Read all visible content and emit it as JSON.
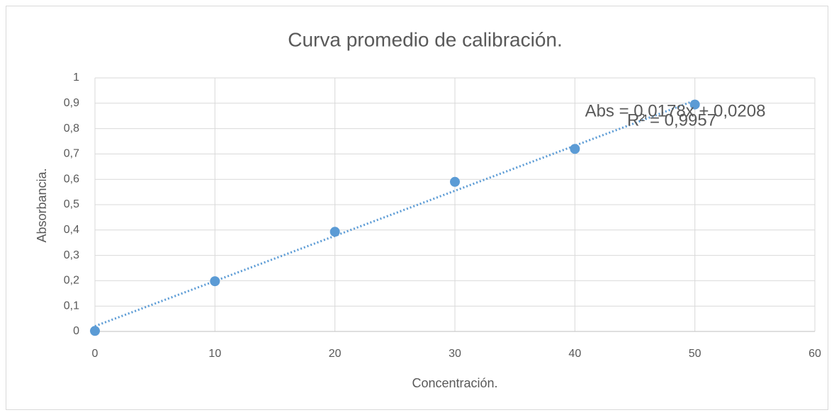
{
  "chart_data": {
    "type": "scatter",
    "title": "Curva promedio de calibración.",
    "x_label": "Concentración.",
    "y_label": "Absorbancia.",
    "series": [
      {
        "name": "Absorbancia",
        "color": "#5b9bd5",
        "x": [
          0,
          10,
          20,
          30,
          40,
          50
        ],
        "values": [
          0.002,
          0.198,
          0.393,
          0.59,
          0.72,
          0.895
        ]
      }
    ],
    "trendline": {
      "slope": 0.0178,
      "intercept": 0.0208,
      "equation": "Abs = 0,0178x + 0,0208",
      "r2": "R² = 0,9957",
      "color": "#5b9bd5"
    },
    "xlim": [
      0,
      60
    ],
    "xticks": [
      0,
      10,
      20,
      30,
      40,
      50,
      60
    ],
    "ylim": [
      0,
      1
    ],
    "yticks": [
      0,
      {
        "value": 0.1,
        "label": "0,1"
      },
      {
        "value": 0.2,
        "label": "0,2"
      },
      {
        "value": 0.3,
        "label": "0,3"
      },
      {
        "value": 0.4,
        "label": "0,4"
      },
      {
        "value": 0.5,
        "label": "0,5"
      },
      {
        "value": 0.6,
        "label": "0,6"
      },
      {
        "value": 0.7,
        "label": "0,7"
      },
      {
        "value": 0.8,
        "label": "0,8"
      },
      {
        "value": 0.9,
        "label": "0,9"
      },
      1
    ],
    "grid": true
  }
}
